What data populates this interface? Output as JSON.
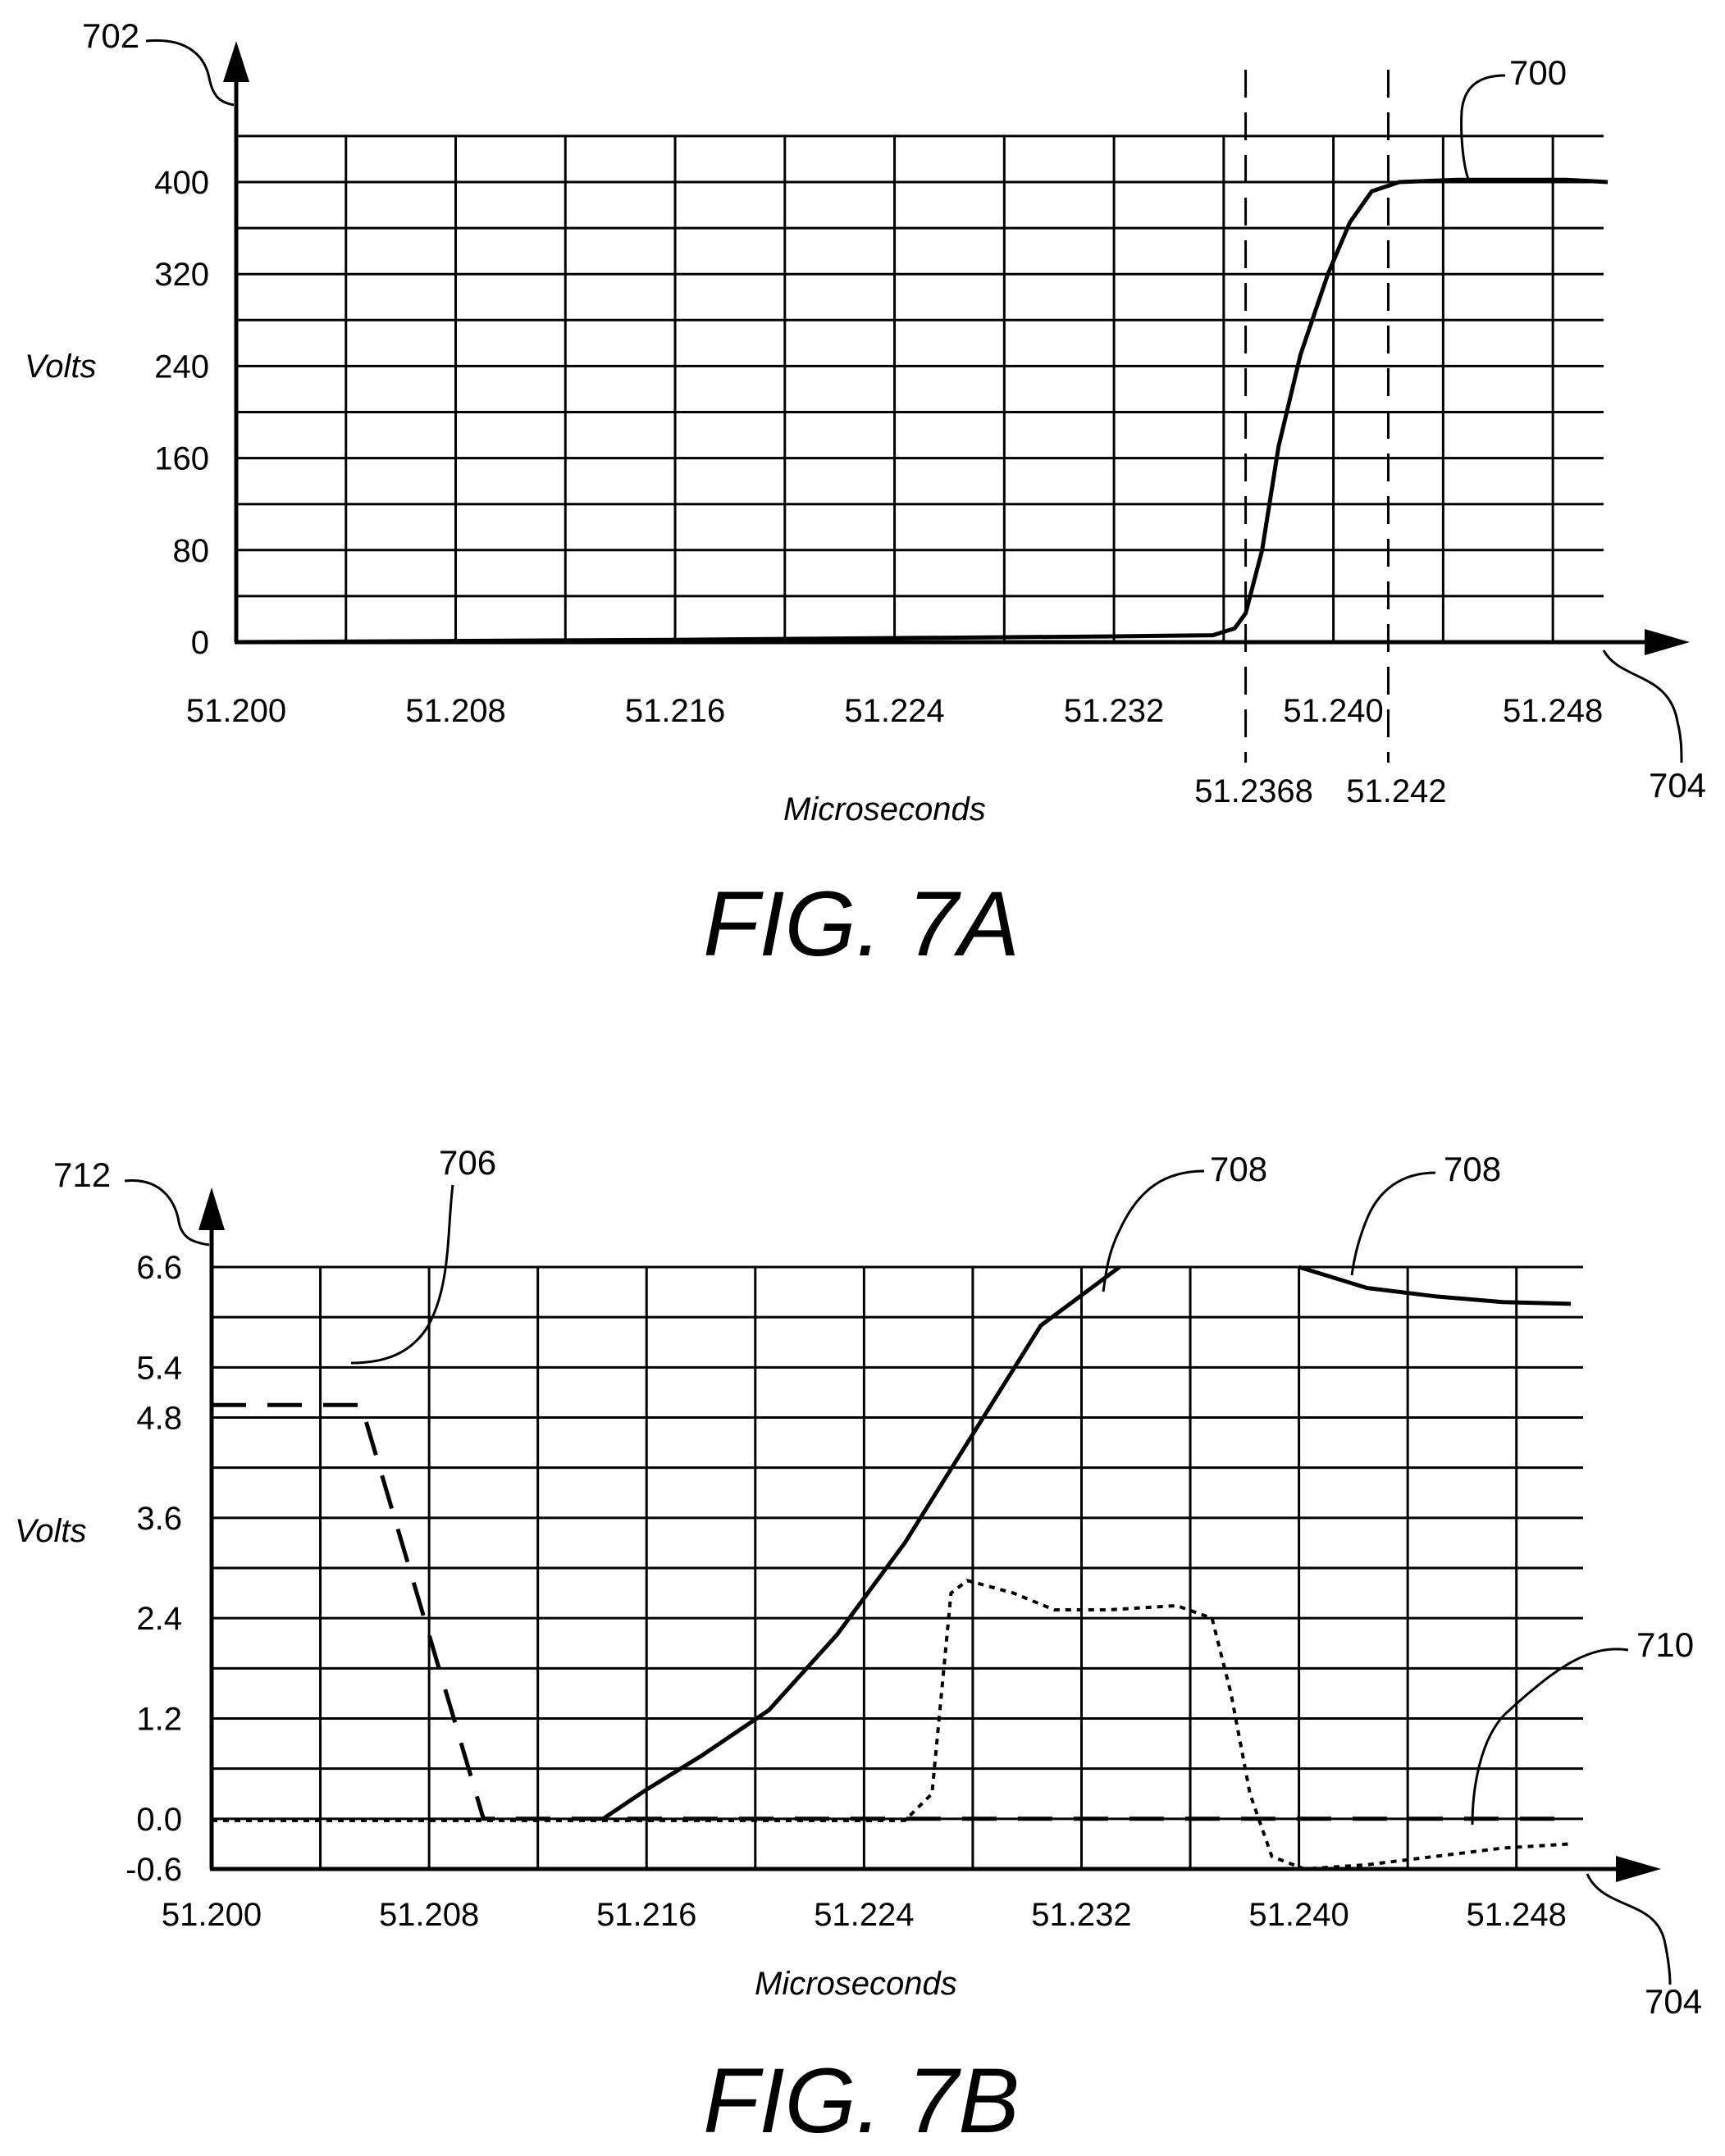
{
  "chart_data": [
    {
      "type": "line",
      "figure_label": "FIG. 7A",
      "xlabel": "Microseconds",
      "ylabel": "Volts",
      "xlim": [
        51.2,
        51.25
      ],
      "ylim": [
        0,
        400
      ],
      "x_ticks": [
        "51.200",
        "51.208",
        "51.216",
        "51.224",
        "51.232",
        "51.240",
        "51.248"
      ],
      "y_ticks": [
        "0",
        "80",
        "160",
        "240",
        "320",
        "400"
      ],
      "grid": true,
      "markers": [
        {
          "x": 51.2368,
          "label": "51.2368"
        },
        {
          "x": 51.242,
          "label": "51.242"
        }
      ],
      "refs": {
        "y_axis": "702",
        "x_axis": "704",
        "curve": "700"
      },
      "series": [
        {
          "ref": "700",
          "style": "solid",
          "points": [
            [
              51.2,
              0
            ],
            [
              51.216,
              2
            ],
            [
              51.232,
              5
            ],
            [
              51.2356,
              6
            ],
            [
              51.2364,
              12
            ],
            [
              51.2368,
              25
            ],
            [
              51.2374,
              80
            ],
            [
              51.238,
              170
            ],
            [
              51.2388,
              250
            ],
            [
              51.2398,
              320
            ],
            [
              51.2406,
              365
            ],
            [
              51.2414,
              392
            ],
            [
              51.2424,
              400
            ],
            [
              51.2445,
              402
            ],
            [
              51.2485,
              402
            ],
            [
              51.25,
              400
            ]
          ]
        }
      ]
    },
    {
      "type": "line",
      "figure_label": "FIG. 7B",
      "xlabel": "Microseconds",
      "ylabel": "Volts",
      "xlim": [
        51.2,
        51.25
      ],
      "ylim": [
        -0.6,
        6.6
      ],
      "x_ticks": [
        "51.200",
        "51.208",
        "51.216",
        "51.224",
        "51.232",
        "51.240",
        "51.248"
      ],
      "y_ticks": [
        "-0.6",
        "0.0",
        "1.2",
        "2.4",
        "3.6",
        "4.8",
        "5.4",
        "6.6"
      ],
      "grid": true,
      "refs": {
        "y_axis": "712",
        "x_axis": "704",
        "dashed_curve": "706",
        "solid_curve_left": "708",
        "solid_curve_right": "708",
        "dotted_curve": "710"
      },
      "series": [
        {
          "ref": "706",
          "style": "dashed",
          "points": [
            [
              51.2,
              4.95
            ],
            [
              51.2055,
              4.95
            ],
            [
              51.21,
              0.0
            ],
            [
              51.25,
              0.0
            ]
          ]
        },
        {
          "ref": "708",
          "style": "solid",
          "points": [
            [
              51.2144,
              0.0
            ],
            [
              51.216,
              0.35
            ],
            [
              51.218,
              0.75
            ],
            [
              51.2205,
              1.3
            ],
            [
              51.223,
              2.2
            ],
            [
              51.2255,
              3.3
            ],
            [
              51.228,
              4.6
            ],
            [
              51.2305,
              5.9
            ],
            [
              51.2334,
              6.6
            ]
          ]
        },
        {
          "ref": "708",
          "style": "solid",
          "points": [
            [
              51.24,
              6.6
            ],
            [
              51.2425,
              6.35
            ],
            [
              51.245,
              6.25
            ],
            [
              51.2475,
              6.18
            ],
            [
              51.25,
              6.16
            ]
          ]
        },
        {
          "ref": "710",
          "style": "dotted",
          "points": [
            [
              51.2,
              -0.02
            ],
            [
              51.2255,
              -0.02
            ],
            [
              51.2265,
              0.3
            ],
            [
              51.2272,
              2.7
            ],
            [
              51.2278,
              2.85
            ],
            [
              51.2295,
              2.7
            ],
            [
              51.231,
              2.5
            ],
            [
              51.233,
              2.5
            ],
            [
              51.2355,
              2.55
            ],
            [
              51.2368,
              2.4
            ],
            [
              51.2375,
              1.5
            ],
            [
              51.2382,
              0.3
            ],
            [
              51.239,
              -0.45
            ],
            [
              51.2402,
              -0.6
            ],
            [
              51.2425,
              -0.55
            ],
            [
              51.245,
              -0.45
            ],
            [
              51.2475,
              -0.35
            ],
            [
              51.25,
              -0.3
            ]
          ]
        }
      ]
    }
  ]
}
